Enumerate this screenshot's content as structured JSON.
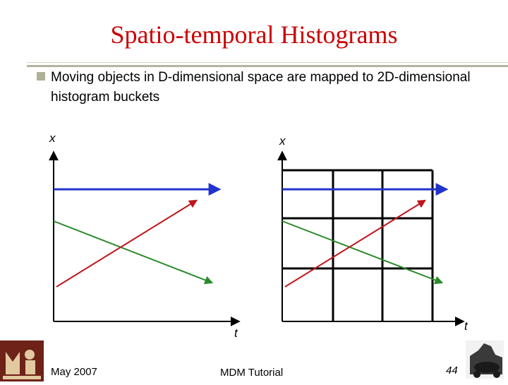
{
  "slide": {
    "title": "Spatio-temporal Histograms",
    "bullet": "Moving objects in D-dimensional space are mapped to 2D-dimensional histogram buckets"
  },
  "diagram": {
    "left_plot": {
      "x_axis_label": "t",
      "y_axis_label": "x"
    },
    "right_plot": {
      "x_axis_label": "t",
      "y_axis_label": "x"
    },
    "colors": {
      "blue": "#2233cc",
      "green": "#2a8a2a",
      "red": "#c0161c",
      "axis": "#000000"
    }
  },
  "footer": {
    "date": "May 2007",
    "center": "MDM Tutorial",
    "page": "44"
  }
}
